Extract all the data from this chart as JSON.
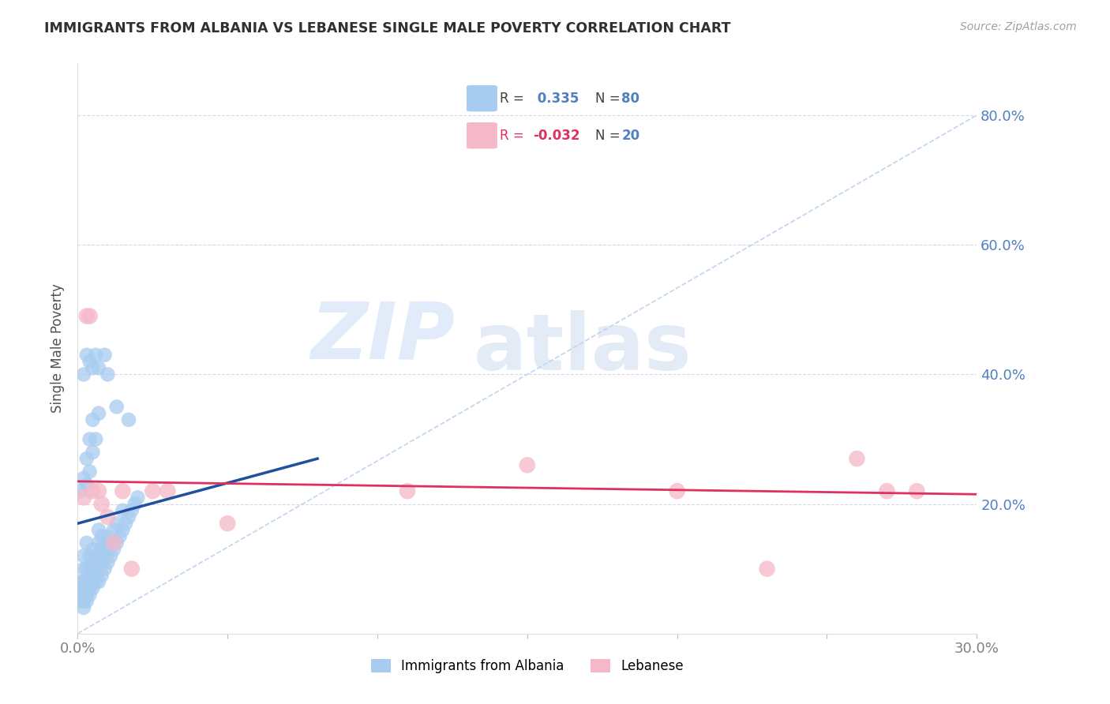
{
  "title": "IMMIGRANTS FROM ALBANIA VS LEBANESE SINGLE MALE POVERTY CORRELATION CHART",
  "source": "Source: ZipAtlas.com",
  "ylabel": "Single Male Poverty",
  "xlim": [
    0.0,
    0.3
  ],
  "ylim": [
    0.0,
    0.88
  ],
  "xticks": [
    0.0,
    0.05,
    0.1,
    0.15,
    0.2,
    0.25,
    0.3
  ],
  "xticklabels": [
    "0.0%",
    "",
    "",
    "",
    "",
    "",
    "30.0%"
  ],
  "yticks": [
    0.2,
    0.4,
    0.6,
    0.8
  ],
  "yticklabels": [
    "20.0%",
    "40.0%",
    "60.0%",
    "80.0%"
  ],
  "albania_R": 0.335,
  "albania_N": 80,
  "lebanese_R": -0.032,
  "lebanese_N": 20,
  "albania_color": "#A8CCF0",
  "lebanese_color": "#F5B8C8",
  "albania_trend_color": "#2050A0",
  "lebanese_trend_color": "#E03060",
  "diagonal_color": "#C0D4F0",
  "background_color": "#FFFFFF",
  "grid_color": "#D8D8E8",
  "title_color": "#303030",
  "axis_label_color": "#505050",
  "tick_color_y": "#5080C0",
  "tick_color_x": "#808080",
  "watermark_zip": "ZIP",
  "watermark_atlas": "atlas",
  "albania_x": [
    0.001,
    0.001,
    0.001,
    0.001,
    0.002,
    0.002,
    0.002,
    0.002,
    0.002,
    0.002,
    0.002,
    0.003,
    0.003,
    0.003,
    0.003,
    0.003,
    0.003,
    0.004,
    0.004,
    0.004,
    0.004,
    0.004,
    0.005,
    0.005,
    0.005,
    0.005,
    0.005,
    0.006,
    0.006,
    0.006,
    0.006,
    0.007,
    0.007,
    0.007,
    0.007,
    0.007,
    0.008,
    0.008,
    0.008,
    0.008,
    0.009,
    0.009,
    0.009,
    0.01,
    0.01,
    0.01,
    0.011,
    0.011,
    0.012,
    0.012,
    0.013,
    0.013,
    0.014,
    0.015,
    0.015,
    0.016,
    0.017,
    0.018,
    0.019,
    0.02,
    0.001,
    0.002,
    0.003,
    0.003,
    0.004,
    0.004,
    0.005,
    0.005,
    0.006,
    0.007,
    0.002,
    0.003,
    0.004,
    0.005,
    0.006,
    0.007,
    0.009,
    0.01,
    0.013,
    0.017
  ],
  "albania_y": [
    0.05,
    0.06,
    0.07,
    0.08,
    0.04,
    0.05,
    0.06,
    0.07,
    0.08,
    0.1,
    0.12,
    0.05,
    0.06,
    0.07,
    0.08,
    0.1,
    0.14,
    0.06,
    0.07,
    0.08,
    0.1,
    0.12,
    0.07,
    0.08,
    0.09,
    0.11,
    0.13,
    0.08,
    0.09,
    0.1,
    0.12,
    0.08,
    0.1,
    0.12,
    0.14,
    0.16,
    0.09,
    0.11,
    0.13,
    0.15,
    0.1,
    0.12,
    0.14,
    0.11,
    0.13,
    0.15,
    0.12,
    0.14,
    0.13,
    0.16,
    0.14,
    0.17,
    0.15,
    0.16,
    0.19,
    0.17,
    0.18,
    0.19,
    0.2,
    0.21,
    0.22,
    0.24,
    0.23,
    0.27,
    0.25,
    0.3,
    0.28,
    0.33,
    0.3,
    0.34,
    0.4,
    0.43,
    0.42,
    0.41,
    0.43,
    0.41,
    0.43,
    0.4,
    0.35,
    0.33
  ],
  "lebanese_x": [
    0.002,
    0.003,
    0.004,
    0.005,
    0.007,
    0.008,
    0.01,
    0.012,
    0.015,
    0.018,
    0.025,
    0.03,
    0.05,
    0.11,
    0.15,
    0.2,
    0.23,
    0.26,
    0.27,
    0.28
  ],
  "lebanese_y": [
    0.21,
    0.49,
    0.49,
    0.22,
    0.22,
    0.2,
    0.18,
    0.14,
    0.22,
    0.1,
    0.22,
    0.22,
    0.17,
    0.22,
    0.26,
    0.22,
    0.1,
    0.27,
    0.22,
    0.22
  ],
  "albania_trend_x": [
    0.0,
    0.08
  ],
  "albania_trend_y_start": 0.17,
  "albania_trend_y_end": 0.27,
  "lebanese_trend_y_start": 0.235,
  "lebanese_trend_y_end": 0.215
}
